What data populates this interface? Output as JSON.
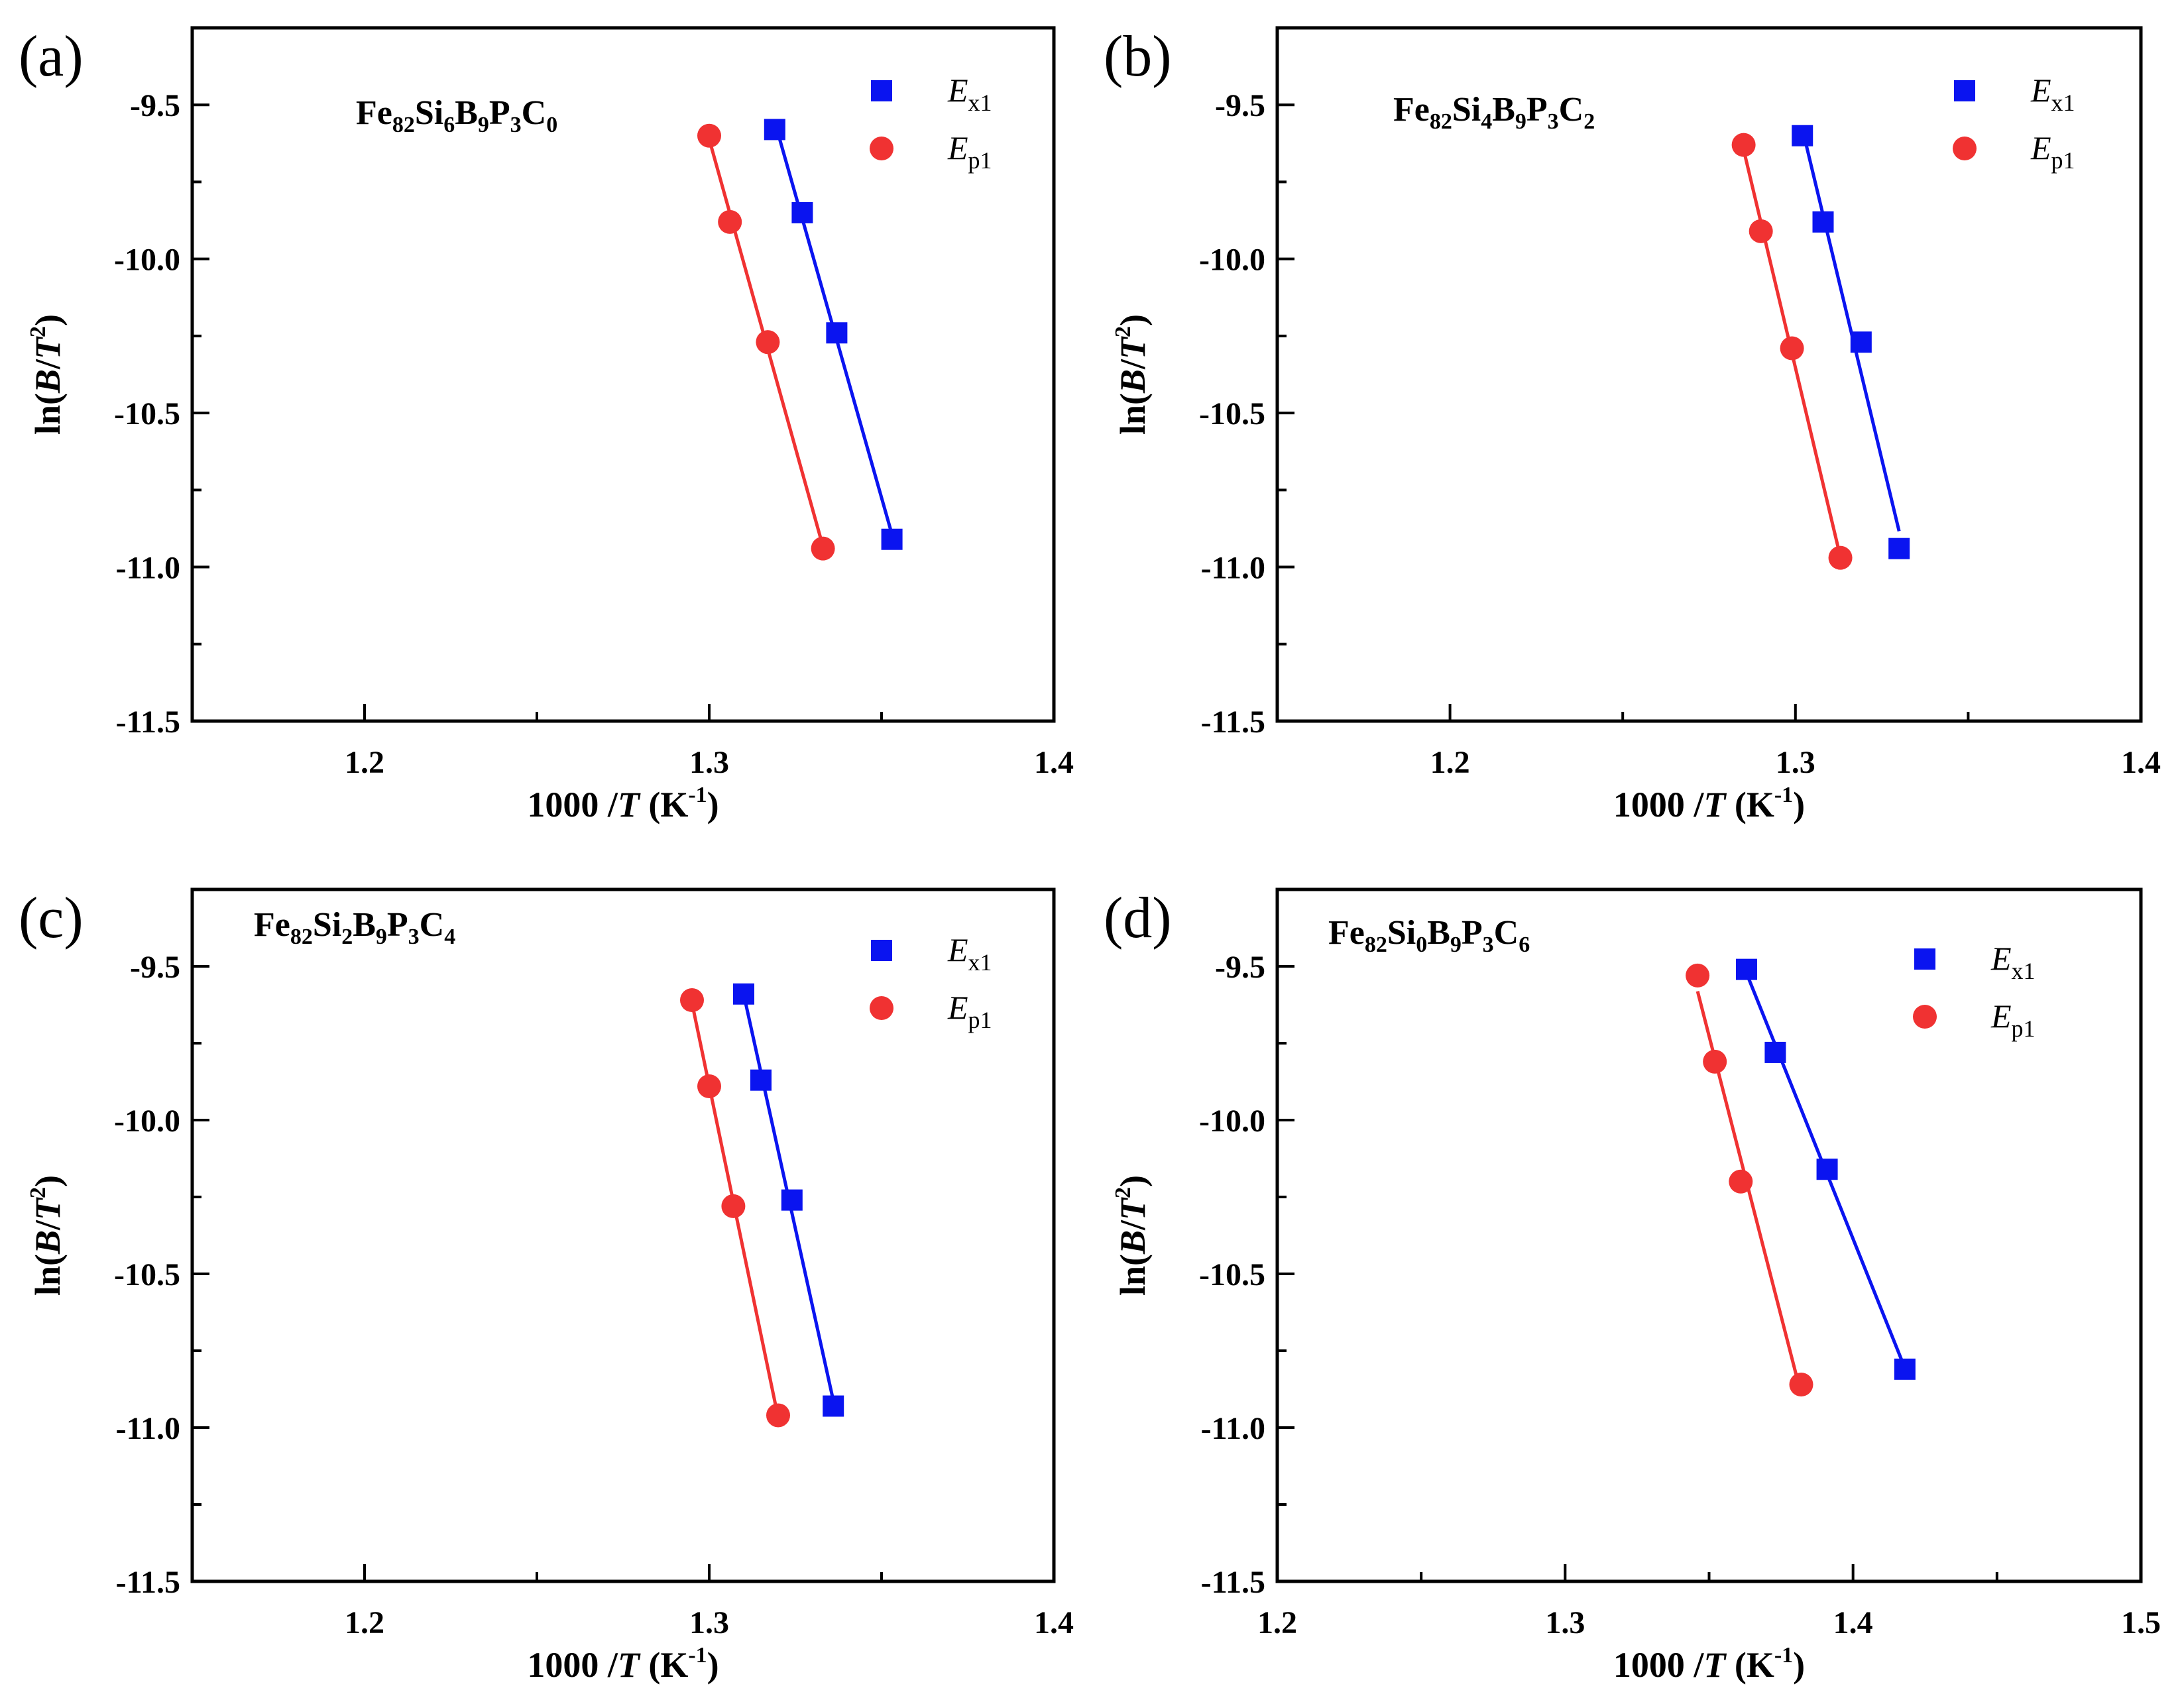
{
  "figure": {
    "colors": {
      "ex1": "#0a14f0",
      "ep1": "#f03232"
    }
  },
  "chart_data": [
    {
      "type": "scatter",
      "panel": "(a)",
      "composition": {
        "parts": [
          [
            "Fe",
            "82"
          ],
          [
            "Si",
            "6"
          ],
          [
            "B",
            "9"
          ],
          [
            "P",
            "3"
          ],
          [
            "C",
            "0"
          ]
        ]
      },
      "xlabel": {
        "pre": "1000 /",
        "italic": "T",
        "mid": " (K",
        "sup": "-1",
        "post": ")"
      },
      "ylabel": {
        "pre": "ln(",
        "it1": "B",
        "slash": "/",
        "it2": "T",
        "sup": "2",
        "post": ")"
      },
      "xlim": [
        1.15,
        1.4
      ],
      "ylim": [
        -11.5,
        -9.25
      ],
      "xticks": [
        1.2,
        1.3,
        1.4
      ],
      "xtick_labels": [
        "1.2",
        "1.3",
        "1.4"
      ],
      "yticks": [
        -9.5,
        -10.0,
        -10.5,
        -11.0,
        -11.5
      ],
      "ytick_labels": [
        "-9.5",
        "-10.0",
        "-10.5",
        "-11.0",
        "-11.5"
      ],
      "legend": [
        {
          "main": "E",
          "sub": "x1"
        },
        {
          "main": "E",
          "sub": "p1"
        }
      ],
      "series": [
        {
          "name": "Ex1",
          "marker": "square",
          "x": [
            1.319,
            1.327,
            1.337,
            1.353
          ],
          "y": [
            -9.58,
            -9.85,
            -10.24,
            -10.91
          ]
        },
        {
          "name": "Ep1",
          "marker": "circle",
          "x": [
            1.3,
            1.306,
            1.317,
            1.333
          ],
          "y": [
            -9.6,
            -9.88,
            -10.27,
            -10.94
          ]
        }
      ]
    },
    {
      "type": "scatter",
      "panel": "(b)",
      "composition": {
        "parts": [
          [
            "Fe",
            "82"
          ],
          [
            "Si",
            "4"
          ],
          [
            "B",
            "9"
          ],
          [
            "P",
            "3"
          ],
          [
            "C",
            "2"
          ]
        ]
      },
      "xlabel": {
        "pre": "1000 /",
        "italic": "T",
        "mid": " (K",
        "sup": "-1",
        "post": ")"
      },
      "ylabel": {
        "pre": "ln(",
        "it1": "B",
        "slash": "/",
        "it2": "T",
        "sup": "2",
        "post": ")"
      },
      "xlim": [
        1.15,
        1.4
      ],
      "ylim": [
        -11.5,
        -9.25
      ],
      "xticks": [
        1.2,
        1.3,
        1.4
      ],
      "xtick_labels": [
        "1.2",
        "1.3",
        "1.4"
      ],
      "yticks": [
        -9.5,
        -10.0,
        -10.5,
        -11.0,
        -11.5
      ],
      "ytick_labels": [
        "-9.5",
        "-10.0",
        "-10.5",
        "-11.0",
        "-11.5"
      ],
      "legend": [
        {
          "main": "E",
          "sub": "x1"
        },
        {
          "main": "E",
          "sub": "p1"
        }
      ],
      "series": [
        {
          "name": "Ex1",
          "marker": "square",
          "x": [
            1.302,
            1.308,
            1.319,
            1.33
          ],
          "y": [
            -9.6,
            -9.88,
            -10.27,
            -10.94
          ]
        },
        {
          "name": "Ep1",
          "marker": "circle",
          "x": [
            1.285,
            1.29,
            1.299,
            1.313
          ],
          "y": [
            -9.63,
            -9.91,
            -10.29,
            -10.97
          ]
        }
      ]
    },
    {
      "type": "scatter",
      "panel": "(c)",
      "composition": {
        "parts": [
          [
            "Fe",
            "82"
          ],
          [
            "Si",
            "2"
          ],
          [
            "B",
            "9"
          ],
          [
            "P",
            "3"
          ],
          [
            "C",
            "4"
          ]
        ]
      },
      "xlabel": {
        "pre": "1000 /",
        "italic": "T",
        "mid": " (K",
        "sup": "-1",
        "post": ")"
      },
      "ylabel": {
        "pre": "ln(",
        "it1": "B",
        "slash": "/",
        "it2": "T",
        "sup": "2",
        "post": ")"
      },
      "xlim": [
        1.15,
        1.4
      ],
      "ylim": [
        -11.5,
        -9.25
      ],
      "xticks": [
        1.2,
        1.3,
        1.4
      ],
      "xtick_labels": [
        "1.2",
        "1.3",
        "1.4"
      ],
      "yticks": [
        -9.5,
        -10.0,
        -10.5,
        -11.0,
        -11.5
      ],
      "ytick_labels": [
        "-9.5",
        "-10.0",
        "-10.5",
        "-11.0",
        "-11.5"
      ],
      "legend": [
        {
          "main": "E",
          "sub": "x1"
        },
        {
          "main": "E",
          "sub": "p1"
        }
      ],
      "series": [
        {
          "name": "Ex1",
          "marker": "square",
          "x": [
            1.31,
            1.315,
            1.324,
            1.336
          ],
          "y": [
            -9.59,
            -9.87,
            -10.26,
            -10.93
          ]
        },
        {
          "name": "Ep1",
          "marker": "circle",
          "x": [
            1.295,
            1.3,
            1.307,
            1.32
          ],
          "y": [
            -9.61,
            -9.89,
            -10.28,
            -10.96
          ]
        }
      ]
    },
    {
      "type": "scatter",
      "panel": "(d)",
      "composition": {
        "parts": [
          [
            "Fe",
            "82"
          ],
          [
            "Si",
            "0"
          ],
          [
            "B",
            "9"
          ],
          [
            "P",
            "3"
          ],
          [
            "C",
            "6"
          ]
        ]
      },
      "xlabel": {
        "pre": "1000 /",
        "italic": "T",
        "mid": " (K",
        "sup": "-1",
        "post": ")"
      },
      "ylabel": {
        "pre": "ln(",
        "it1": "B",
        "slash": "/",
        "it2": "T",
        "sup": "2",
        "post": ")"
      },
      "xlim": [
        1.2,
        1.5
      ],
      "ylim": [
        -11.5,
        -9.25
      ],
      "xticks": [
        1.2,
        1.3,
        1.4,
        1.5
      ],
      "xtick_labels": [
        "1.2",
        "1.3",
        "1.4",
        "1.5"
      ],
      "yticks": [
        -9.5,
        -10.0,
        -10.5,
        -11.0,
        -11.5
      ],
      "ytick_labels": [
        "-9.5",
        "-10.0",
        "-10.5",
        "-11.0",
        "-11.5"
      ],
      "legend": [
        {
          "main": "E",
          "sub": "x1"
        },
        {
          "main": "E",
          "sub": "p1"
        }
      ],
      "series": [
        {
          "name": "Ex1",
          "marker": "square",
          "x": [
            1.363,
            1.373,
            1.391,
            1.418
          ],
          "y": [
            -9.51,
            -9.78,
            -10.16,
            -10.81
          ]
        },
        {
          "name": "Ep1",
          "marker": "circle",
          "x": [
            1.346,
            1.352,
            1.361,
            1.382
          ],
          "y": [
            -9.53,
            -9.81,
            -10.2,
            -10.86
          ]
        }
      ]
    }
  ]
}
